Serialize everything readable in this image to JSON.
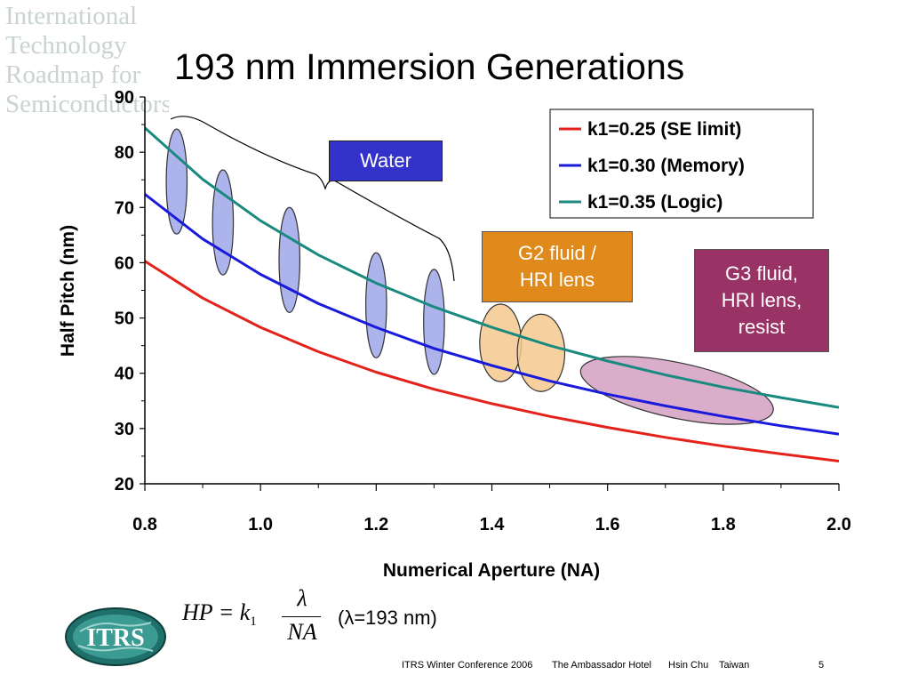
{
  "slide": {
    "title": "193 nm Immersion Generations",
    "background_logo_lines": [
      "International",
      "Technology",
      "Roadmap for",
      "Semiconductors"
    ],
    "footer": {
      "conference": "ITRS Winter Conference 2006",
      "venue": "The Ambassador Hotel",
      "city": "Hsin Chu",
      "country": "Taiwan",
      "page": "5"
    },
    "logo_text": "ITRS"
  },
  "annotations": {
    "water": "Water",
    "g2_line1": "G2 fluid /",
    "g2_line2": "HRI lens",
    "g3_line1": "G3 fluid,",
    "g3_line2": "HRI lens,",
    "g3_line3": "resist"
  },
  "formula": {
    "lhs": "HP = k",
    "subscript": "1",
    "numerator": "λ",
    "denominator": "NA",
    "note": "(λ=193 nm)"
  },
  "chart_data": {
    "type": "line",
    "title": "193 nm Immersion Generations",
    "xlabel": "Numerical Aperture (NA)",
    "ylabel": "Half Pitch (nm)",
    "xlim": [
      0.8,
      2.0
    ],
    "ylim": [
      20,
      90
    ],
    "xticks": [
      "0.8",
      "1.0",
      "1.2",
      "1.4",
      "1.6",
      "1.8",
      "2.0"
    ],
    "yticks": [
      "20",
      "30",
      "40",
      "50",
      "60",
      "70",
      "80",
      "90"
    ],
    "x": [
      0.8,
      0.9,
      1.0,
      1.1,
      1.2,
      1.3,
      1.4,
      1.5,
      1.6,
      1.7,
      1.8,
      1.9,
      2.0
    ],
    "series": [
      {
        "name": "k1=0.25 (SE limit)",
        "color": "#e3231b",
        "values": [
          60.3,
          53.6,
          48.3,
          43.9,
          40.2,
          37.1,
          34.5,
          32.2,
          30.2,
          28.4,
          26.8,
          25.4,
          24.1
        ]
      },
      {
        "name": "k1=0.30 (Memory)",
        "color": "#1a1adb",
        "values": [
          72.4,
          64.3,
          57.9,
          52.6,
          48.3,
          44.5,
          41.4,
          38.6,
          36.2,
          34.1,
          32.2,
          30.5,
          29.0
        ]
      },
      {
        "name": "k1=0.35 (Logic)",
        "color": "#1a8a80",
        "values": [
          84.4,
          75.1,
          67.6,
          61.4,
          56.3,
          52.0,
          48.3,
          45.0,
          42.2,
          39.7,
          37.5,
          35.6,
          33.8
        ]
      }
    ],
    "legend": "top-right",
    "grid": false,
    "regions": [
      {
        "group": "Water",
        "color": "#9fa6e8",
        "na": 0.855,
        "hp": 74.7,
        "na_halfwidth": 0.018,
        "hp_halfheight": 9.5
      },
      {
        "group": "Water",
        "color": "#9fa6e8",
        "na": 0.935,
        "hp": 67.3,
        "na_halfwidth": 0.018,
        "hp_halfheight": 9.5
      },
      {
        "group": "Water",
        "color": "#9fa6e8",
        "na": 1.05,
        "hp": 60.5,
        "na_halfwidth": 0.018,
        "hp_halfheight": 9.5
      },
      {
        "group": "Water",
        "color": "#9fa6e8",
        "na": 1.2,
        "hp": 52.3,
        "na_halfwidth": 0.018,
        "hp_halfheight": 9.5
      },
      {
        "group": "Water",
        "color": "#9fa6e8",
        "na": 1.3,
        "hp": 49.3,
        "na_halfwidth": 0.018,
        "hp_halfheight": 9.5
      },
      {
        "group": "G2 fluid / HRI lens",
        "color": "#f5c98e",
        "na": 1.415,
        "hp": 45.5,
        "na_halfwidth": 0.036,
        "hp_halfheight": 7.0
      },
      {
        "group": "G2 fluid / HRI lens",
        "color": "#f5c98e",
        "na": 1.485,
        "hp": 43.7,
        "na_halfwidth": 0.041,
        "hp_halfheight": 7.0
      },
      {
        "group": "G3 fluid, HRI lens, resist",
        "color": "#d4a0c2",
        "na": 1.72,
        "hp": 36.9,
        "na_halfwidth": 0.17,
        "hp_halfheight": 5.0
      }
    ]
  }
}
